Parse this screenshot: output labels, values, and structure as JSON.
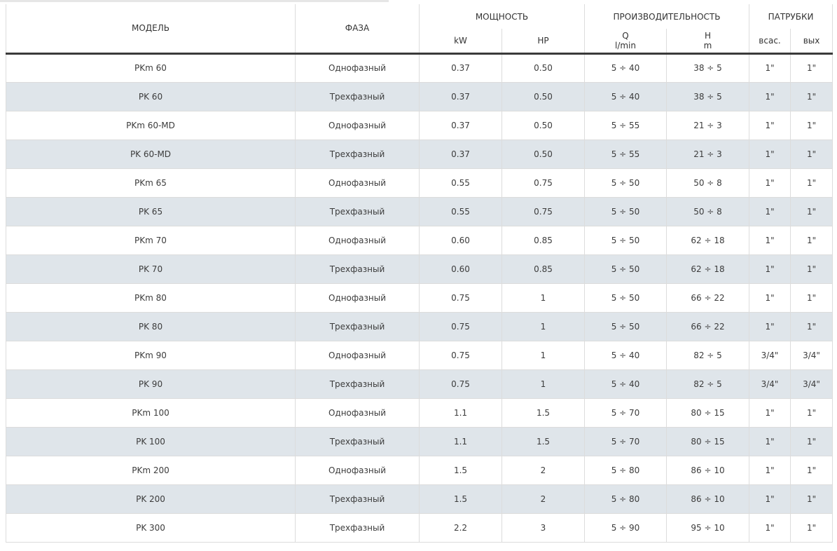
{
  "header": {
    "model": "МОДЕЛЬ",
    "phase": "ФАЗА",
    "power": "МОЩНОСТЬ",
    "power_kw": "kW",
    "power_hp": "HP",
    "performance": "ПРОИЗВОДИТЕЛЬНОСТЬ",
    "q_label": "Q",
    "q_unit": "l/min",
    "h_label": "H",
    "h_unit": "m",
    "ports": "ПАТРУБКИ",
    "port_in": "всас.",
    "port_out": "вых"
  },
  "rows": [
    {
      "model": "PKm 60",
      "phase": "Однофазный",
      "kw": "0.37",
      "hp": "0.50",
      "q": "5 ÷ 40",
      "h": "38 ÷ 5",
      "in": "1\"",
      "out": "1\""
    },
    {
      "model": "PK 60",
      "phase": "Трехфазный",
      "kw": "0.37",
      "hp": "0.50",
      "q": "5 ÷ 40",
      "h": "38 ÷ 5",
      "in": "1\"",
      "out": "1\""
    },
    {
      "model": "PKm 60-MD",
      "phase": "Однофазный",
      "kw": "0.37",
      "hp": "0.50",
      "q": "5 ÷ 55",
      "h": "21 ÷ 3",
      "in": "1\"",
      "out": "1\""
    },
    {
      "model": "PK 60-MD",
      "phase": "Трехфазный",
      "kw": "0.37",
      "hp": "0.50",
      "q": "5 ÷ 55",
      "h": "21 ÷ 3",
      "in": "1\"",
      "out": "1\""
    },
    {
      "model": "PKm 65",
      "phase": "Однофазный",
      "kw": "0.55",
      "hp": "0.75",
      "q": "5 ÷ 50",
      "h": "50 ÷ 8",
      "in": "1\"",
      "out": "1\""
    },
    {
      "model": "PK 65",
      "phase": "Трехфазный",
      "kw": "0.55",
      "hp": "0.75",
      "q": "5 ÷ 50",
      "h": "50 ÷ 8",
      "in": "1\"",
      "out": "1\""
    },
    {
      "model": "PKm 70",
      "phase": "Однофазный",
      "kw": "0.60",
      "hp": "0.85",
      "q": "5 ÷ 50",
      "h": "62 ÷ 18",
      "in": "1\"",
      "out": "1\""
    },
    {
      "model": "PK 70",
      "phase": "Трехфазный",
      "kw": "0.60",
      "hp": "0.85",
      "q": "5 ÷ 50",
      "h": "62 ÷ 18",
      "in": "1\"",
      "out": "1\""
    },
    {
      "model": "PKm 80",
      "phase": "Однофазный",
      "kw": "0.75",
      "hp": "1",
      "q": "5 ÷ 50",
      "h": "66 ÷ 22",
      "in": "1\"",
      "out": "1\""
    },
    {
      "model": "PK 80",
      "phase": "Трехфазный",
      "kw": "0.75",
      "hp": "1",
      "q": "5 ÷ 50",
      "h": "66 ÷ 22",
      "in": "1\"",
      "out": "1\""
    },
    {
      "model": "PKm 90",
      "phase": "Однофазный",
      "kw": "0.75",
      "hp": "1",
      "q": "5 ÷ 40",
      "h": "82 ÷ 5",
      "in": "3/4\"",
      "out": "3/4\""
    },
    {
      "model": "PK 90",
      "phase": "Трехфазный",
      "kw": "0.75",
      "hp": "1",
      "q": "5 ÷ 40",
      "h": "82 ÷ 5",
      "in": "3/4\"",
      "out": "3/4\""
    },
    {
      "model": "PKm 100",
      "phase": "Однофазный",
      "kw": "1.1",
      "hp": "1.5",
      "q": "5 ÷ 70",
      "h": "80 ÷ 15",
      "in": "1\"",
      "out": "1\""
    },
    {
      "model": "PK 100",
      "phase": "Трехфазный",
      "kw": "1.1",
      "hp": "1.5",
      "q": "5 ÷ 70",
      "h": "80 ÷ 15",
      "in": "1\"",
      "out": "1\""
    },
    {
      "model": "PKm 200",
      "phase": "Однофазный",
      "kw": "1.5",
      "hp": "2",
      "q": "5 ÷ 80",
      "h": "86 ÷ 10",
      "in": "1\"",
      "out": "1\""
    },
    {
      "model": "PK 200",
      "phase": "Трехфазный",
      "kw": "1.5",
      "hp": "2",
      "q": "5 ÷ 80",
      "h": "86 ÷ 10",
      "in": "1\"",
      "out": "1\""
    },
    {
      "model": "PK 300",
      "phase": "Трехфазный",
      "kw": "2.2",
      "hp": "3",
      "q": "5 ÷ 90",
      "h": "95 ÷ 10",
      "in": "1\"",
      "out": "1\""
    }
  ]
}
